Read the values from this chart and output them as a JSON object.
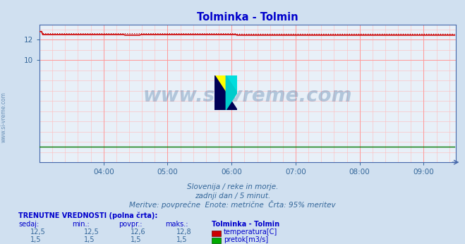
{
  "title": "Tolminka - Tolmin",
  "title_color": "#0000cc",
  "bg_color": "#d0e0f0",
  "plot_bg_color": "#e8f0f8",
  "x_ticks_labels": [
    "04:00",
    "05:00",
    "06:00",
    "07:00",
    "08:00",
    "09:00"
  ],
  "x_ticks_positions": [
    60,
    120,
    180,
    240,
    300,
    360
  ],
  "x_min": 0,
  "x_max": 390,
  "y_min": 0,
  "y_max": 13.5,
  "y_ticks": [
    10,
    12
  ],
  "temp_value": 12.5,
  "temp_max": 12.8,
  "flow_value": 1.5,
  "n_points": 390,
  "temp_color": "#cc0000",
  "flow_color": "#007700",
  "tick_color": "#336699",
  "axis_color": "#4466aa",
  "subtitle1": "Slovenija / reke in morje.",
  "subtitle2": "zadnji dan / 5 minut.",
  "subtitle3": "Meritve: povprečne  Enote: metrične  Črta: 95% meritev",
  "subtitle_color": "#336699",
  "watermark": "www.si-vreme.com",
  "watermark_color": "#336699",
  "label_trenutne": "TRENUTNE VREDNOSTI (polna črta):",
  "col_sedaj": "sedaj:",
  "col_min": "min.:",
  "col_povpr": "povpr.:",
  "col_maks": "maks.:",
  "col_station": "Tolminka - Tolmin",
  "temp_sedaj": "12,5",
  "temp_min": "12,5",
  "temp_povpr": "12,6",
  "temp_maks": "12,8",
  "temp_label": "temperatura[C]",
  "flow_sedaj": "1,5",
  "flow_min": "1,5",
  "flow_povpr": "1,5",
  "flow_maks": "1,5",
  "flow_label": "pretok[m3/s]",
  "sidebar_text": "www.si-vreme.com",
  "sidebar_color": "#336699"
}
